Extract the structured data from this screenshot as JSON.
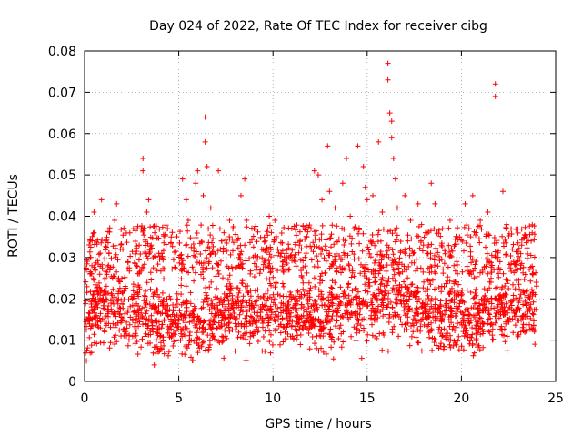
{
  "chart_data": {
    "type": "scatter",
    "title": "Day 024 of 2022, Rate Of TEC Index for receiver cibg",
    "xlabel": "GPS time / hours",
    "ylabel": "ROTI / TECUs",
    "xlim": [
      0,
      25
    ],
    "ylim": [
      0,
      0.08
    ],
    "x_ticks": [
      0,
      5,
      10,
      15,
      20,
      25
    ],
    "x_tick_labels": [
      "0",
      "5",
      "10",
      "15",
      "20",
      "25"
    ],
    "y_ticks": [
      0,
      0.01,
      0.02,
      0.03,
      0.04,
      0.05,
      0.06,
      0.07,
      0.08
    ],
    "y_tick_labels": [
      "0",
      "0.01",
      "0.02",
      "0.03",
      "0.04",
      "0.05",
      "0.06",
      "0.07",
      "0.08"
    ],
    "grid": true,
    "marker": "plus",
    "color": "#ff0000",
    "outliers": [
      {
        "x": 0.1,
        "y": 0.005
      },
      {
        "x": 0.1,
        "y": 0.027
      },
      {
        "x": 0.3,
        "y": 0.03
      },
      {
        "x": 0.5,
        "y": 0.036
      },
      {
        "x": 0.5,
        "y": 0.041
      },
      {
        "x": 0.9,
        "y": 0.044
      },
      {
        "x": 1.1,
        "y": 0.034
      },
      {
        "x": 1.3,
        "y": 0.031
      },
      {
        "x": 1.6,
        "y": 0.039
      },
      {
        "x": 1.7,
        "y": 0.043
      },
      {
        "x": 1.9,
        "y": 0.032
      },
      {
        "x": 2.3,
        "y": 0.029
      },
      {
        "x": 2.6,
        "y": 0.037
      },
      {
        "x": 2.9,
        "y": 0.033
      },
      {
        "x": 3.1,
        "y": 0.054
      },
      {
        "x": 3.1,
        "y": 0.051
      },
      {
        "x": 3.3,
        "y": 0.041
      },
      {
        "x": 3.4,
        "y": 0.044
      },
      {
        "x": 3.7,
        "y": 0.004
      },
      {
        "x": 4.1,
        "y": 0.031
      },
      {
        "x": 4.4,
        "y": 0.037
      },
      {
        "x": 4.6,
        "y": 0.035
      },
      {
        "x": 5.2,
        "y": 0.049
      },
      {
        "x": 5.4,
        "y": 0.044
      },
      {
        "x": 5.5,
        "y": 0.039
      },
      {
        "x": 5.9,
        "y": 0.048
      },
      {
        "x": 6.0,
        "y": 0.051
      },
      {
        "x": 6.3,
        "y": 0.045
      },
      {
        "x": 6.4,
        "y": 0.064
      },
      {
        "x": 6.4,
        "y": 0.058
      },
      {
        "x": 6.5,
        "y": 0.052
      },
      {
        "x": 6.7,
        "y": 0.042
      },
      {
        "x": 7.1,
        "y": 0.051
      },
      {
        "x": 7.4,
        "y": 0.036
      },
      {
        "x": 7.7,
        "y": 0.039
      },
      {
        "x": 8.3,
        "y": 0.045
      },
      {
        "x": 8.5,
        "y": 0.049
      },
      {
        "x": 8.6,
        "y": 0.039
      },
      {
        "x": 9.0,
        "y": 0.037
      },
      {
        "x": 9.4,
        "y": 0.032
      },
      {
        "x": 9.8,
        "y": 0.04
      },
      {
        "x": 10.1,
        "y": 0.039
      },
      {
        "x": 10.7,
        "y": 0.031
      },
      {
        "x": 11.4,
        "y": 0.033
      },
      {
        "x": 11.8,
        "y": 0.035
      },
      {
        "x": 12.2,
        "y": 0.051
      },
      {
        "x": 12.4,
        "y": 0.05
      },
      {
        "x": 12.6,
        "y": 0.044
      },
      {
        "x": 12.9,
        "y": 0.057
      },
      {
        "x": 13.0,
        "y": 0.046
      },
      {
        "x": 13.3,
        "y": 0.042
      },
      {
        "x": 13.7,
        "y": 0.048
      },
      {
        "x": 13.9,
        "y": 0.054
      },
      {
        "x": 14.1,
        "y": 0.04
      },
      {
        "x": 14.3,
        "y": 0.037
      },
      {
        "x": 14.5,
        "y": 0.057
      },
      {
        "x": 14.8,
        "y": 0.052
      },
      {
        "x": 14.9,
        "y": 0.047
      },
      {
        "x": 15.0,
        "y": 0.044
      },
      {
        "x": 15.3,
        "y": 0.045
      },
      {
        "x": 15.6,
        "y": 0.058
      },
      {
        "x": 15.8,
        "y": 0.041
      },
      {
        "x": 16.1,
        "y": 0.077
      },
      {
        "x": 16.1,
        "y": 0.073
      },
      {
        "x": 16.2,
        "y": 0.065
      },
      {
        "x": 16.3,
        "y": 0.063
      },
      {
        "x": 16.3,
        "y": 0.059
      },
      {
        "x": 16.4,
        "y": 0.054
      },
      {
        "x": 16.5,
        "y": 0.049
      },
      {
        "x": 16.6,
        "y": 0.042
      },
      {
        "x": 17.0,
        "y": 0.045
      },
      {
        "x": 17.3,
        "y": 0.039
      },
      {
        "x": 17.7,
        "y": 0.043
      },
      {
        "x": 18.1,
        "y": 0.036
      },
      {
        "x": 18.4,
        "y": 0.048
      },
      {
        "x": 18.6,
        "y": 0.043
      },
      {
        "x": 19.0,
        "y": 0.037
      },
      {
        "x": 19.4,
        "y": 0.039
      },
      {
        "x": 19.9,
        "y": 0.035
      },
      {
        "x": 20.2,
        "y": 0.043
      },
      {
        "x": 20.6,
        "y": 0.045
      },
      {
        "x": 21.0,
        "y": 0.039
      },
      {
        "x": 21.4,
        "y": 0.041
      },
      {
        "x": 21.8,
        "y": 0.072
      },
      {
        "x": 21.8,
        "y": 0.069
      },
      {
        "x": 22.2,
        "y": 0.046
      },
      {
        "x": 22.4,
        "y": 0.038
      },
      {
        "x": 22.7,
        "y": 0.032
      },
      {
        "x": 23.2,
        "y": 0.033
      },
      {
        "x": 23.7,
        "y": 0.034
      },
      {
        "x": 23.8,
        "y": 0.026
      },
      {
        "x": 23.9,
        "y": 0.009
      }
    ]
  }
}
